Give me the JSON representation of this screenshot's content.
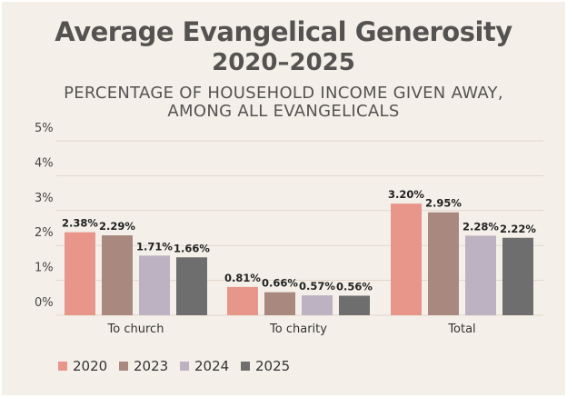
{
  "chart_data": {
    "type": "bar",
    "title": "Average Evangelical Generosity",
    "title_line2": "2020–2025",
    "subtitle_line1": "PERCENTAGE OF HOUSEHOLD INCOME GIVEN AWAY,",
    "subtitle_line2": "AMONG ALL EVANGELICALS",
    "xlabel": "",
    "ylabel": "",
    "ylim": [
      0,
      5
    ],
    "yticks": [
      "0%",
      "1%",
      "2%",
      "3%",
      "4%",
      "5%"
    ],
    "grid": true,
    "legend_position": "bottom-left",
    "categories": [
      "To church",
      "To charity",
      "Total"
    ],
    "series": [
      {
        "name": "2020",
        "color": "#e8968a",
        "values": [
          2.38,
          0.81,
          3.2
        ],
        "labels": [
          "2.38%",
          "0.81%",
          "3.20%"
        ]
      },
      {
        "name": "2023",
        "color": "#a8887f",
        "values": [
          2.29,
          0.66,
          2.95
        ],
        "labels": [
          "2.29%",
          "0.66%",
          "2.95%"
        ]
      },
      {
        "name": "2024",
        "color": "#bcb2c1",
        "values": [
          1.71,
          0.57,
          2.28
        ],
        "labels": [
          "1.71%",
          "0.57%",
          "2.28%"
        ]
      },
      {
        "name": "2025",
        "color": "#6e6e6e",
        "values": [
          1.66,
          0.56,
          2.22
        ],
        "labels": [
          "1.66%",
          "0.56%",
          "2.22%"
        ]
      }
    ]
  }
}
